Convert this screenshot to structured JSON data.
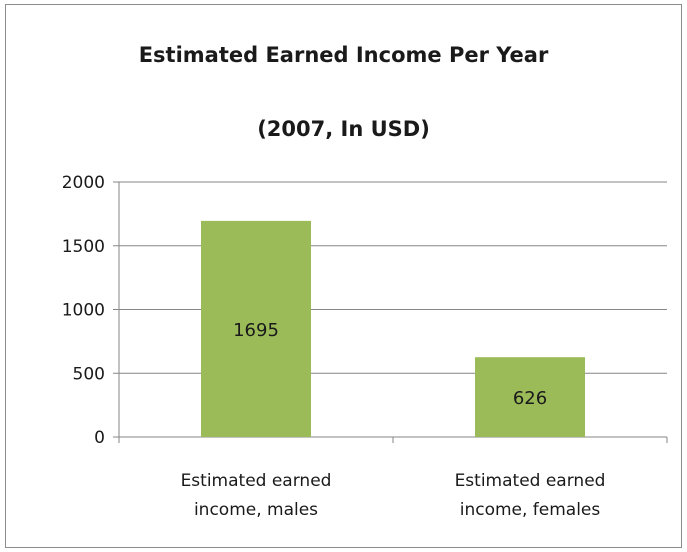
{
  "chart_data": {
    "type": "bar",
    "title": [
      "Estimated Earned Income Per Year",
      "(2007, In USD)"
    ],
    "xlabel": "",
    "ylabel": "",
    "categories": [
      [
        "Estimated earned",
        "income, males"
      ],
      [
        "Estimated earned",
        "income, females"
      ]
    ],
    "values": [
      1695,
      626
    ],
    "data_labels": [
      "1695",
      "626"
    ],
    "ylim": [
      0,
      2000
    ],
    "yticks": [
      0,
      500,
      1000,
      1500,
      2000
    ],
    "ytick_labels": [
      "0",
      "500",
      "1000",
      "1500",
      "2000"
    ],
    "grid": true,
    "legend": "none",
    "colors": {
      "bar": "#9bbb59",
      "grid": "#868686",
      "axis": "#868686"
    }
  }
}
